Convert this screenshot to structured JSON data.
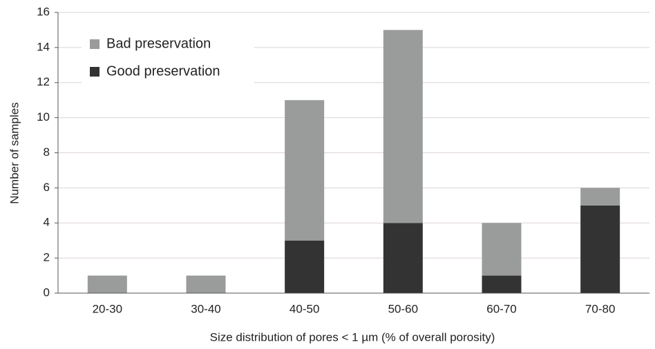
{
  "chart_data": {
    "type": "stacked-bar",
    "x_label": "Size distribution of pores < 1 µm (% of overall porosity)",
    "y_label": "Number of samples",
    "categories": [
      "20-30",
      "30-40",
      "40-50",
      "50-60",
      "60-70",
      "70-80"
    ],
    "series": [
      {
        "name": "Good preservation",
        "color": "#333333",
        "values": [
          0,
          0,
          3,
          4,
          1,
          5
        ]
      },
      {
        "name": "Bad preservation",
        "color": "#9a9c9b",
        "values": [
          1,
          1,
          8,
          11,
          3,
          1
        ]
      }
    ],
    "ylim": [
      0,
      16
    ],
    "yticks": [
      0,
      2,
      4,
      6,
      8,
      10,
      12,
      14,
      16
    ],
    "grid": true,
    "legend": "top-left"
  }
}
